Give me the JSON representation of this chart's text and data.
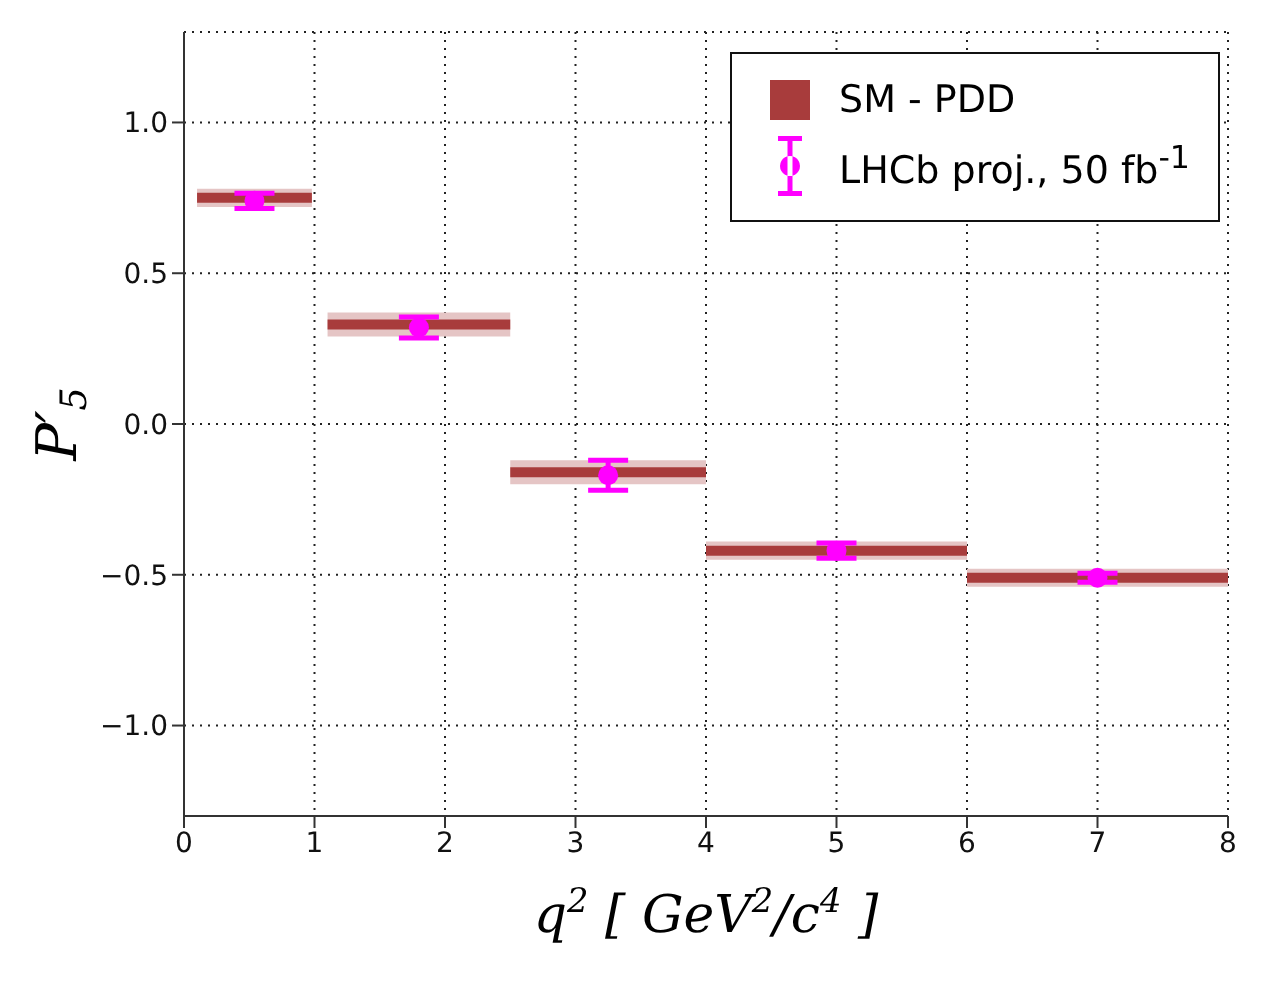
{
  "chart_data": {
    "type": "scatter",
    "xlabel": "q$^{2}$ [ GeV$^{2}$/c$^{4}$ ]",
    "ylabel": "P′$_{5}$",
    "xlim": [
      0,
      8
    ],
    "xticks": [
      0,
      1,
      2,
      3,
      4,
      5,
      6,
      7,
      8
    ],
    "ylim": [
      -1.3,
      1.3
    ],
    "yticks": [
      {
        "value": -1,
        "label": "−1.0"
      },
      {
        "value": -0.5,
        "label": "−0.5"
      },
      {
        "value": 0,
        "label": "0.0"
      },
      {
        "value": 0.5,
        "label": "0.5"
      },
      {
        "value": 1,
        "label": "1.0"
      }
    ],
    "grid": true,
    "legend": "top right",
    "series": [
      {
        "name": "SM - PDD",
        "type": "line",
        "color": "#a83c3c",
        "marker": "none",
        "x": [
          0.1,
          0.98
        ],
        "values": [
          0.75,
          0.75
        ],
        "lower": [
          0.72,
          0.72
        ],
        "upper": [
          0.78,
          0.78
        ]
      },
      {
        "type": "line",
        "color": "#a83c3c",
        "marker": "none",
        "x": [
          1.1,
          2.5
        ],
        "values": [
          0.33,
          0.33
        ],
        "lower": [
          0.29,
          0.29
        ],
        "upper": [
          0.37,
          0.37
        ]
      },
      {
        "type": "line",
        "color": "#a83c3c",
        "marker": "none",
        "x": [
          2.5,
          4
        ],
        "values": [
          -0.16,
          -0.16
        ],
        "lower": [
          -0.2,
          -0.2
        ],
        "upper": [
          -0.12,
          -0.12
        ]
      },
      {
        "type": "line",
        "color": "#a83c3c",
        "marker": "none",
        "x": [
          4,
          6
        ],
        "values": [
          -0.42,
          -0.42
        ],
        "lower": [
          -0.45,
          -0.45
        ],
        "upper": [
          -0.39,
          -0.39
        ]
      },
      {
        "type": "line",
        "color": "#a83c3c",
        "marker": "none",
        "x": [
          6,
          8
        ],
        "values": [
          -0.51,
          -0.51
        ],
        "lower": [
          -0.54,
          -0.54
        ],
        "upper": [
          -0.48,
          -0.48
        ]
      },
      {
        "name": "LHCb proj., 50 fb$^{-1}$",
        "color": "#ff00ff",
        "marker": "circle",
        "x": [
          0.54,
          1.8,
          3.25,
          5,
          7
        ],
        "values": [
          0.74,
          0.32,
          -0.17,
          -0.42,
          -0.51
        ],
        "errors": [
          0.025,
          0.035,
          0.05,
          0.025,
          0.015
        ]
      }
    ]
  }
}
